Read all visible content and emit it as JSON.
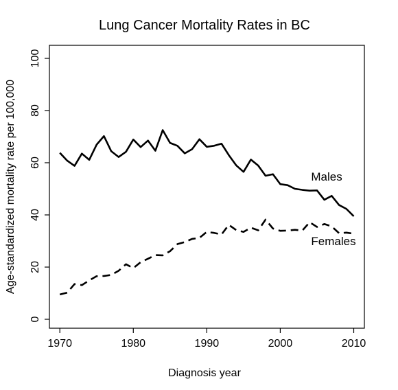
{
  "chart_data": {
    "type": "line",
    "title": "Lung Cancer Mortality Rates in BC",
    "xlabel": "Diagnosis year",
    "ylabel": "Age-standardized mortality rate per 100,000",
    "xlim": [
      1970,
      2010
    ],
    "ylim": [
      0,
      100
    ],
    "x_ticks": [
      1970,
      1980,
      1990,
      2000,
      2010
    ],
    "y_ticks": [
      0,
      20,
      40,
      60,
      80,
      100
    ],
    "grid": false,
    "legend": "none",
    "x": [
      1970,
      1971,
      1972,
      1973,
      1974,
      1975,
      1976,
      1977,
      1978,
      1979,
      1980,
      1981,
      1982,
      1983,
      1984,
      1985,
      1986,
      1987,
      1988,
      1989,
      1990,
      1991,
      1992,
      1993,
      1994,
      1995,
      1996,
      1997,
      1998,
      1999,
      2000,
      2001,
      2002,
      2003,
      2004,
      2005,
      2006,
      2007,
      2008,
      2009,
      2010
    ],
    "series": [
      {
        "name": "Males",
        "line_style": "solid",
        "values": [
          63.8,
          60.8,
          58.8,
          63.5,
          61.1,
          66.9,
          70.2,
          64.4,
          62.2,
          64.2,
          68.9,
          66.0,
          68.5,
          64.6,
          72.5,
          67.6,
          66.5,
          63.6,
          65.2,
          69.0,
          66.1,
          66.5,
          67.3,
          62.9,
          59.0,
          56.5,
          61.2,
          58.9,
          55.0,
          55.6,
          51.8,
          51.4,
          50.0,
          49.6,
          49.3,
          49.4,
          45.8,
          47.3,
          43.8,
          42.3,
          39.5
        ]
      },
      {
        "name": "Females",
        "line_style": "dashed",
        "values": [
          9.5,
          10.2,
          13.5,
          13.1,
          14.9,
          16.5,
          16.6,
          17.0,
          18.6,
          21.1,
          19.6,
          21.9,
          23.2,
          24.6,
          24.5,
          26.1,
          28.8,
          29.6,
          30.8,
          31.2,
          33.5,
          33.1,
          32.5,
          36.2,
          34.2,
          33.5,
          35.1,
          34.1,
          38.2,
          34.8,
          33.9,
          34.0,
          34.3,
          34.0,
          37.2,
          35.4,
          36.5,
          35.6,
          33.0,
          33.2,
          32.8
        ]
      }
    ],
    "annotations": [
      {
        "text": "Males",
        "x": 2004.2,
        "y": 53.2
      },
      {
        "text": "Females",
        "x": 2004.2,
        "y": 28.4
      }
    ],
    "colors": {
      "line": "#000000",
      "axis": "#000000",
      "background": "#ffffff"
    }
  }
}
